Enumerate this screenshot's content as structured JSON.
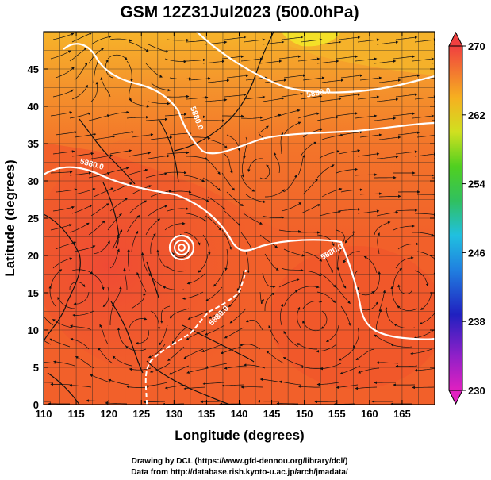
{
  "title": "GSM 12Z31Jul2023 (500.0hPa)",
  "xlabel": "Longitude (degrees)",
  "ylabel": "Latitude  (degrees)",
  "credit_line1": "Drawing by DCL (https://www.gfd-dennou.org/library/dcl/)",
  "credit_line2": "Data from http://database.rish.kyoto-u.ac.jp/arch/jmadata/",
  "chart_data": {
    "type": "heatmap",
    "title": "GSM 12Z31Jul2023 (500.0hPa)",
    "xlabel": "Longitude (degrees)",
    "ylabel": "Latitude  (degrees)",
    "xlim": [
      110,
      170
    ],
    "ylim": [
      0,
      50
    ],
    "x_ticks": [
      "110",
      "115",
      "120",
      "125",
      "130",
      "135",
      "140",
      "145",
      "150",
      "155",
      "160",
      "165"
    ],
    "y_ticks": [
      "0",
      "5",
      "10",
      "15",
      "20",
      "25",
      "30",
      "35",
      "40",
      "45"
    ],
    "colorbar": {
      "min": 230,
      "max": 270,
      "tick_labels": [
        "270",
        "262",
        "254",
        "246",
        "238",
        "230"
      ]
    },
    "contour_labels": [
      "5880.0",
      "5880.0",
      "5880.0",
      "5880.0",
      "5880.0"
    ],
    "grid": true,
    "streamlines": true
  },
  "colors": {
    "field_hot": "#f0502a",
    "field_warm": "#f57a2a",
    "field_cool": "#f6a42c",
    "contour": "#ffffff",
    "coast": "#111111"
  }
}
